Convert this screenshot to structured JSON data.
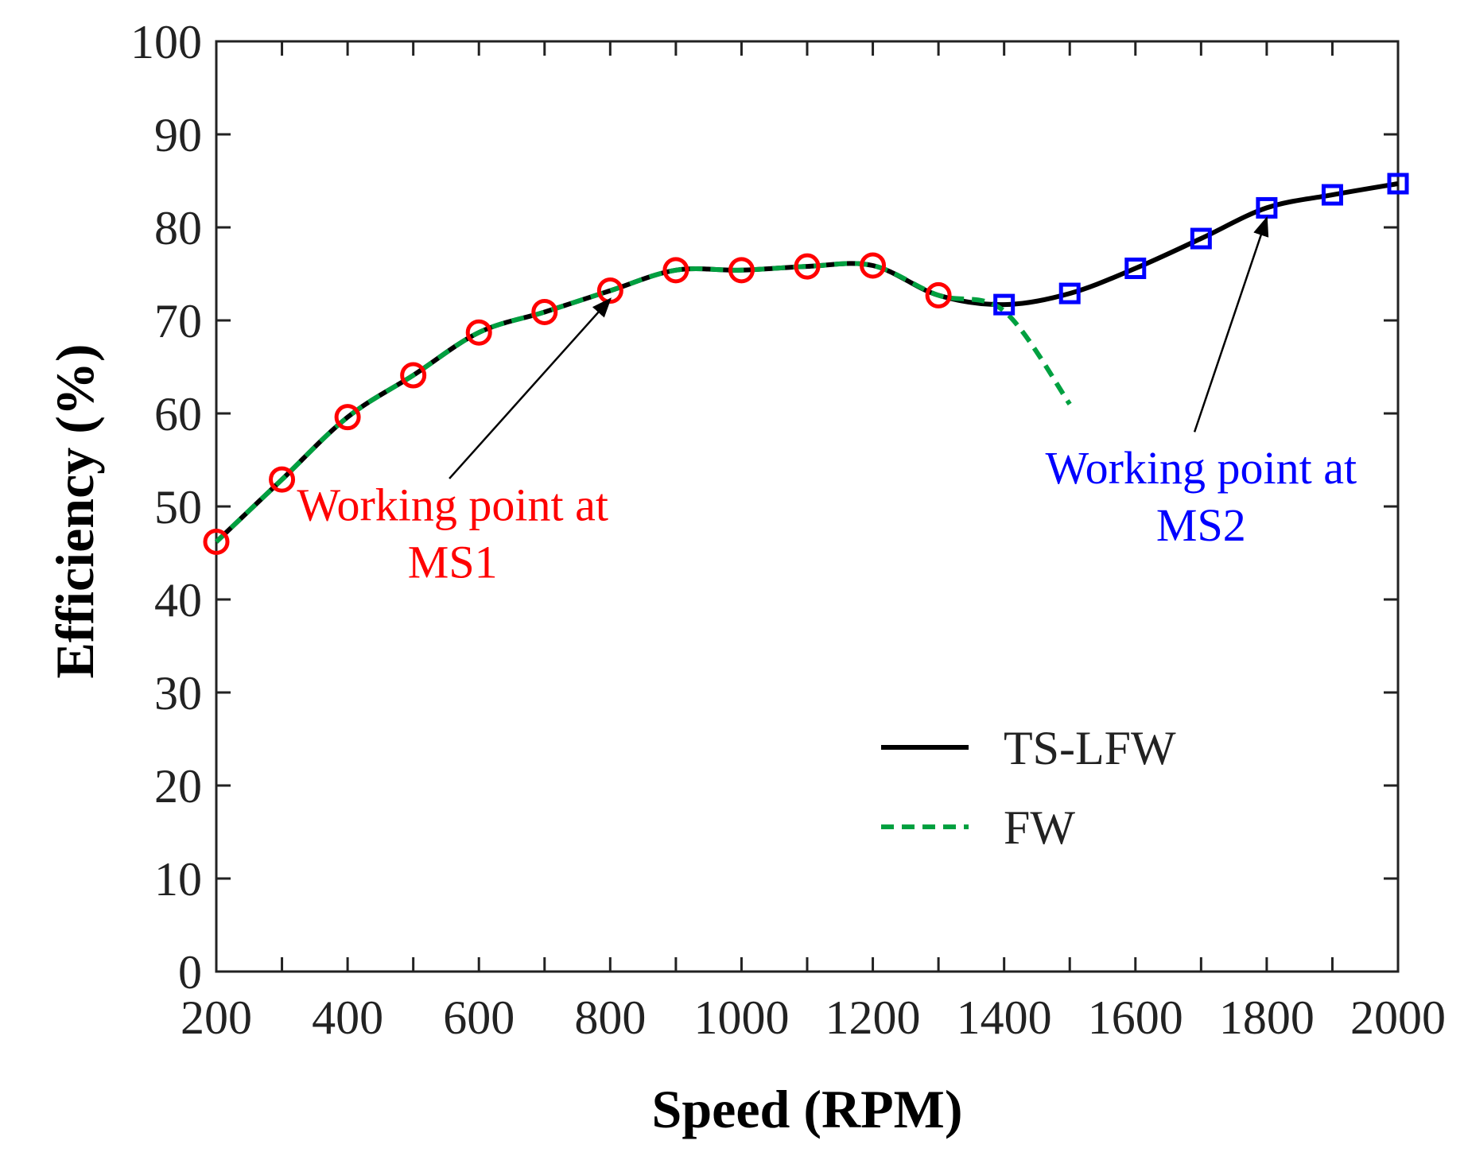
{
  "chart_data": {
    "type": "line",
    "title": "",
    "xlabel": "Speed (RPM)",
    "ylabel": "Efficiency (%)",
    "xlim": [
      200,
      2000
    ],
    "ylim": [
      0,
      100
    ],
    "xticks": [
      200,
      400,
      600,
      800,
      1000,
      1200,
      1400,
      1600,
      1800,
      2000
    ],
    "yticks": [
      0,
      10,
      20,
      30,
      40,
      50,
      60,
      70,
      80,
      90,
      100
    ],
    "grid": false,
    "legend_position": "lower-right",
    "series": [
      {
        "name": "TS-LFW",
        "style": "solid",
        "color": "#000000",
        "x": [
          200,
          300,
          400,
          500,
          600,
          700,
          800,
          900,
          1000,
          1100,
          1200,
          1300,
          1400,
          1500,
          1600,
          1700,
          1800,
          1900,
          2000
        ],
        "y": [
          46.2,
          52.9,
          59.6,
          64.1,
          68.7,
          70.9,
          73.2,
          75.4,
          75.4,
          75.8,
          75.9,
          72.7,
          71.7,
          72.9,
          75.6,
          78.8,
          82.1,
          83.5,
          84.7
        ]
      },
      {
        "name": "FW",
        "style": "dashed",
        "color": "#00a040",
        "x": [
          200,
          300,
          400,
          500,
          600,
          700,
          800,
          900,
          1000,
          1100,
          1200,
          1300,
          1400,
          1500
        ],
        "y": [
          46.2,
          52.9,
          59.6,
          64.1,
          68.7,
          70.9,
          73.2,
          75.4,
          75.4,
          75.8,
          75.9,
          72.7,
          71.0,
          61.0
        ]
      }
    ],
    "markers": [
      {
        "group": "MS1",
        "shape": "circle",
        "color": "#ff0000",
        "x": [
          200,
          300,
          400,
          500,
          600,
          700,
          800,
          900,
          1000,
          1100,
          1200,
          1300
        ],
        "y": [
          46.2,
          52.9,
          59.6,
          64.1,
          68.7,
          70.9,
          73.2,
          75.4,
          75.4,
          75.8,
          75.9,
          72.7
        ]
      },
      {
        "group": "MS2",
        "shape": "square",
        "color": "#0000ff",
        "x": [
          1400,
          1500,
          1600,
          1700,
          1800,
          1900,
          2000
        ],
        "y": [
          71.7,
          72.9,
          75.6,
          78.8,
          82.1,
          83.5,
          84.7
        ]
      }
    ],
    "annotations": [
      {
        "lines": [
          "Working point at",
          "MS1"
        ],
        "color": "#ff0000",
        "text_anchor": [
          560,
          48.5
        ],
        "arrow_from": [
          555,
          53.0
        ],
        "arrow_to": [
          800,
          72.3
        ]
      },
      {
        "lines": [
          "Working point at",
          "MS2"
        ],
        "color": "#0000ff",
        "text_anchor": [
          1700,
          52.5
        ],
        "arrow_from": [
          1690,
          58.0
        ],
        "arrow_to": [
          1800,
          81.0
        ]
      }
    ]
  }
}
